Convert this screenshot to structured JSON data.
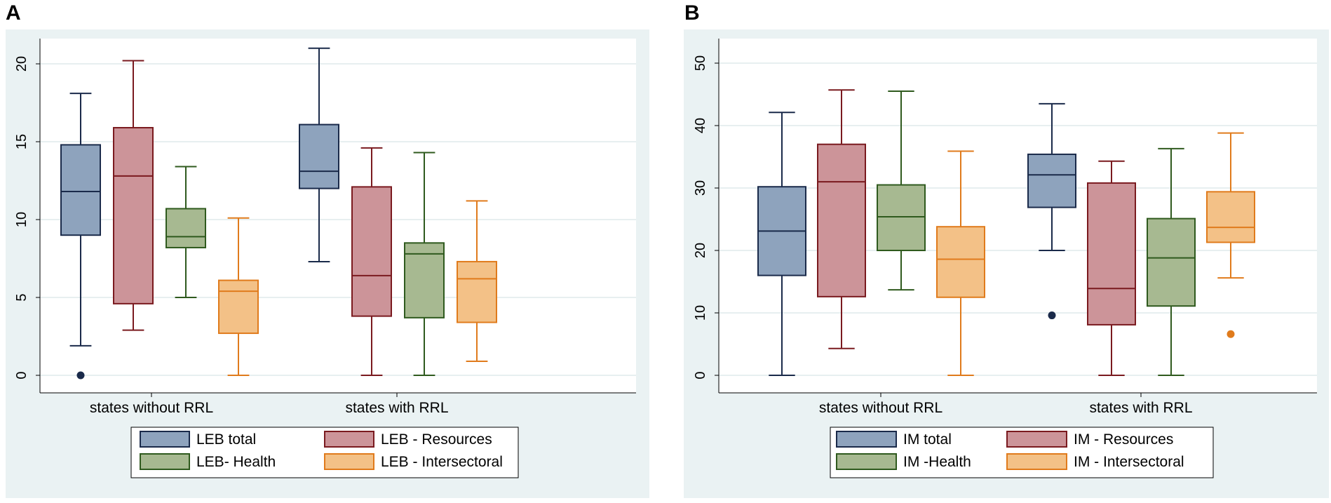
{
  "panels": [
    {
      "id": "a",
      "label": "A"
    },
    {
      "id": "b",
      "label": "B"
    }
  ],
  "chart_data": [
    {
      "type": "box",
      "panel": "A",
      "categories": [
        "states without RRL",
        "states with RRL"
      ],
      "ylim": [
        0,
        22
      ],
      "yticks": [
        0,
        5,
        10,
        15,
        20
      ],
      "grid": true,
      "legend_position": "bottom",
      "series": [
        {
          "name": "LEB total",
          "color": "#8ea3bd",
          "stroke": "#1a2a4a",
          "boxes": [
            {
              "min": 1.9,
              "q1": 9.0,
              "median": 11.8,
              "q3": 14.8,
              "max": 18.1,
              "outliers": [
                0.0
              ]
            },
            {
              "min": 7.3,
              "q1": 12.0,
              "median": 13.1,
              "q3": 16.1,
              "max": 21.0,
              "outliers": []
            }
          ]
        },
        {
          "name": "LEB - Resources",
          "color": "#cc9499",
          "stroke": "#7a1a1f",
          "boxes": [
            {
              "min": 2.9,
              "q1": 4.6,
              "median": 12.8,
              "q3": 15.9,
              "max": 20.2,
              "outliers": []
            },
            {
              "min": 0.0,
              "q1": 3.8,
              "median": 6.4,
              "q3": 12.1,
              "max": 14.6,
              "outliers": []
            }
          ]
        },
        {
          "name": "LEB- Health",
          "color": "#a7b991",
          "stroke": "#2f5a1e",
          "boxes": [
            {
              "min": 5.0,
              "q1": 8.2,
              "median": 8.9,
              "q3": 10.7,
              "max": 13.4,
              "outliers": []
            },
            {
              "min": 0.0,
              "q1": 3.7,
              "median": 7.8,
              "q3": 8.5,
              "max": 14.3,
              "outliers": []
            }
          ]
        },
        {
          "name": "LEB - Intersectoral",
          "color": "#f3c187",
          "stroke": "#e07b1c",
          "boxes": [
            {
              "min": 0.0,
              "q1": 2.7,
              "median": 5.4,
              "q3": 6.1,
              "max": 10.1,
              "outliers": []
            },
            {
              "min": 0.9,
              "q1": 3.4,
              "median": 6.2,
              "q3": 7.3,
              "max": 11.2,
              "outliers": []
            }
          ]
        }
      ]
    },
    {
      "type": "box",
      "panel": "B",
      "categories": [
        "states without RRL",
        "states with RRL"
      ],
      "ylim": [
        0,
        52
      ],
      "yticks": [
        0,
        10,
        20,
        30,
        40,
        50
      ],
      "grid": true,
      "legend_position": "bottom",
      "series": [
        {
          "name": "IM total",
          "color": "#8ea3bd",
          "stroke": "#1a2a4a",
          "boxes": [
            {
              "min": 0.0,
              "q1": 16.0,
              "median": 23.1,
              "q3": 30.2,
              "max": 42.1,
              "outliers": []
            },
            {
              "min": 20.0,
              "q1": 26.9,
              "median": 32.1,
              "q3": 35.4,
              "max": 43.5,
              "outliers": [
                9.6
              ]
            }
          ]
        },
        {
          "name": "IM - Resources",
          "color": "#cc9499",
          "stroke": "#7a1a1f",
          "boxes": [
            {
              "min": 4.3,
              "q1": 12.6,
              "median": 31.0,
              "q3": 37.0,
              "max": 45.7,
              "outliers": []
            },
            {
              "min": 0.0,
              "q1": 8.1,
              "median": 13.9,
              "q3": 30.8,
              "max": 34.3,
              "outliers": []
            }
          ]
        },
        {
          "name": "IM -Health",
          "color": "#a7b991",
          "stroke": "#2f5a1e",
          "boxes": [
            {
              "min": 13.7,
              "q1": 20.0,
              "median": 25.4,
              "q3": 30.5,
              "max": 45.5,
              "outliers": []
            },
            {
              "min": 0.0,
              "q1": 11.1,
              "median": 18.8,
              "q3": 25.1,
              "max": 36.3,
              "outliers": []
            }
          ]
        },
        {
          "name": "IM - Intersectoral",
          "color": "#f3c187",
          "stroke": "#e07b1c",
          "boxes": [
            {
              "min": 0.0,
              "q1": 12.5,
              "median": 18.6,
              "q3": 23.8,
              "max": 35.9,
              "outliers": []
            },
            {
              "min": 15.6,
              "q1": 21.3,
              "median": 23.7,
              "q3": 29.4,
              "max": 38.8,
              "outliers": [
                6.6
              ]
            }
          ]
        }
      ]
    }
  ]
}
